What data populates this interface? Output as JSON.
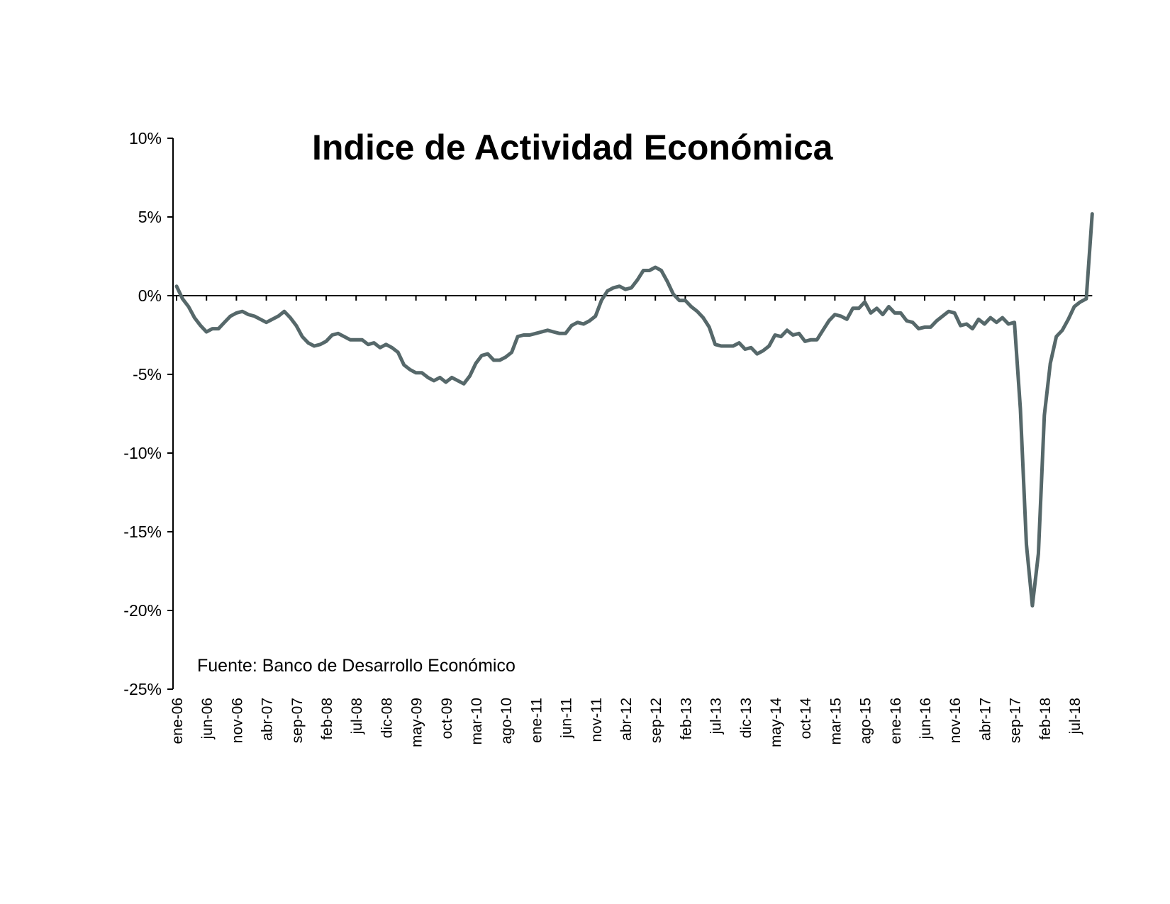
{
  "chart_data": {
    "type": "line",
    "title": "Indice de Actividad Económica",
    "source_note": "Fuente: Banco de Desarrollo Económico",
    "xlabel": "",
    "ylabel": "",
    "ylim": [
      -25,
      10
    ],
    "y_ticks": [
      10,
      5,
      0,
      -5,
      -10,
      -15,
      -20,
      -25
    ],
    "y_tick_labels": [
      "10%",
      "5%",
      "0%",
      "-5%",
      "-10%",
      "-15%",
      "-20%",
      "-25%"
    ],
    "x_tick_labels": [
      "ene-06",
      "jun-06",
      "nov-06",
      "abr-07",
      "sep-07",
      "feb-08",
      "jul-08",
      "dic-08",
      "may-09",
      "oct-09",
      "mar-10",
      "ago-10",
      "ene-11",
      "jun-11",
      "nov-11",
      "abr-12",
      "sep-12",
      "feb-13",
      "jul-13",
      "dic-13",
      "may-14",
      "oct-14",
      "mar-15",
      "ago-15",
      "ene-16",
      "jun-16",
      "nov-16",
      "abr-17",
      "sep-17",
      "feb-18",
      "jul-18"
    ],
    "x_start": "ene-06",
    "x_end": "sep-18",
    "grid": false,
    "line_color": "#56686a",
    "series": [
      {
        "values": [
          0.6,
          -0.2,
          -0.7,
          -1.4,
          -1.9,
          -2.3,
          -2.1,
          -2.1,
          -1.7,
          -1.3,
          -1.1,
          -1.0,
          -1.2,
          -1.3,
          -1.5,
          -1.7,
          -1.5,
          -1.3,
          -1.0,
          -1.4,
          -1.9,
          -2.6,
          -3.0,
          -3.2,
          -3.1,
          -2.9,
          -2.5,
          -2.4,
          -2.6,
          -2.8,
          -2.8,
          -2.8,
          -3.1,
          -3.0,
          -3.3,
          -3.1,
          -3.3,
          -3.6,
          -4.4,
          -4.7,
          -4.9,
          -4.9,
          -5.2,
          -5.4,
          -5.2,
          -5.5,
          -5.2,
          -5.4,
          -5.6,
          -5.1,
          -4.3,
          -3.8,
          -3.7,
          -4.1,
          -4.1,
          -3.9,
          -3.6,
          -2.6,
          -2.5,
          -2.5,
          -2.4,
          -2.3,
          -2.2,
          -2.3,
          -2.4,
          -2.4,
          -1.9,
          -1.7,
          -1.8,
          -1.6,
          -1.3,
          -0.3,
          0.3,
          0.5,
          0.6,
          0.4,
          0.5,
          1.0,
          1.6,
          1.6,
          1.8,
          1.6,
          0.9,
          0.1,
          -0.3,
          -0.3,
          -0.7,
          -1.0,
          -1.4,
          -2.0,
          -3.1,
          -3.2,
          -3.2,
          -3.2,
          -3.0,
          -3.4,
          -3.3,
          -3.7,
          -3.5,
          -3.2,
          -2.5,
          -2.6,
          -2.2,
          -2.5,
          -2.4,
          -2.9,
          -2.8,
          -2.8,
          -2.2,
          -1.6,
          -1.2,
          -1.3,
          -1.5,
          -0.8,
          -0.8,
          -0.4,
          -1.1,
          -0.8,
          -1.2,
          -0.7,
          -1.1,
          -1.1,
          -1.6,
          -1.7,
          -2.1,
          -2.0,
          -2.0,
          -1.6,
          -1.3,
          -1.0,
          -1.1,
          -1.9,
          -1.8,
          -2.1,
          -1.5,
          -1.8,
          -1.4,
          -1.7,
          -1.4,
          -1.8,
          -1.7,
          -7.2,
          -15.8,
          -19.7,
          -16.4,
          -7.6,
          -4.3,
          -2.6,
          -2.2,
          -1.5,
          -0.7,
          -0.4,
          -0.2,
          5.2
        ]
      }
    ]
  }
}
